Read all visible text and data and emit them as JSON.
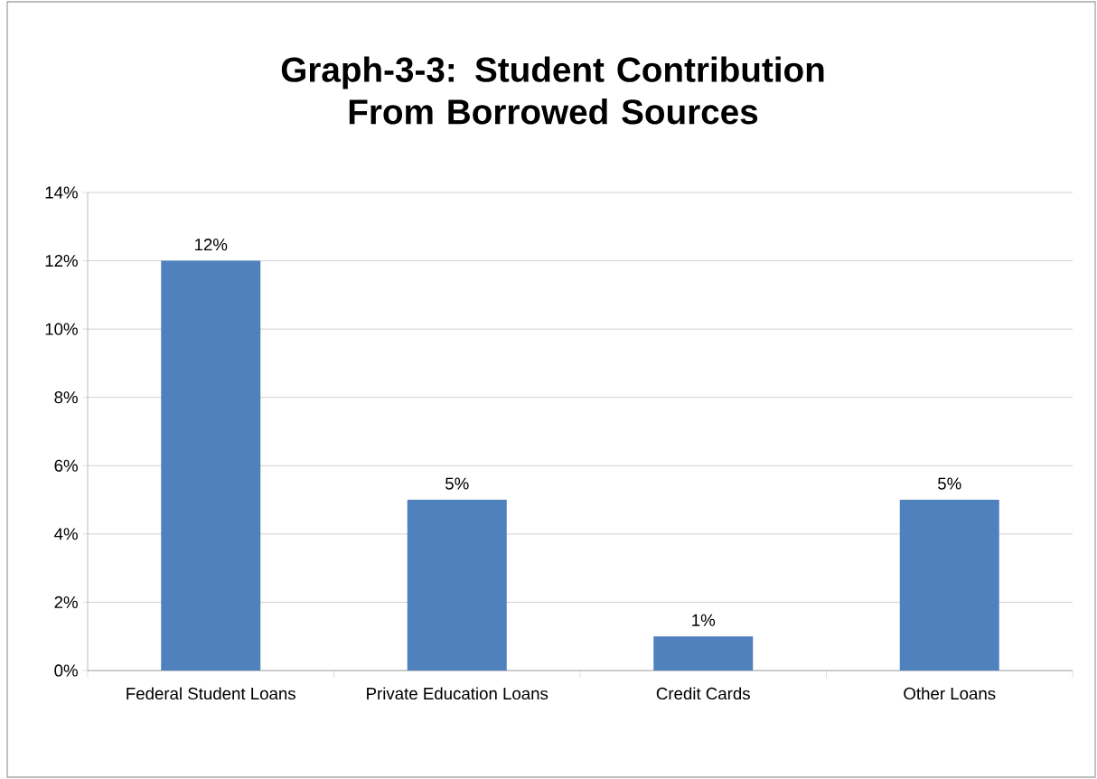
{
  "chart_data": {
    "type": "bar",
    "title": "Graph-3-3: Student Contribution From Borrowed Sources",
    "categories": [
      "Federal Student Loans",
      "Private Education Loans",
      "Credit Cards",
      "Other Loans"
    ],
    "values": [
      12,
      5,
      1,
      5
    ],
    "value_labels": [
      "12%",
      "5%",
      "1%",
      "5%"
    ],
    "color": "#4f81bd",
    "ylim": [
      0,
      14
    ],
    "yticks": [
      {
        "value": 0,
        "label": "0%"
      },
      {
        "value": 2,
        "label": "2%"
      },
      {
        "value": 4,
        "label": "4%"
      },
      {
        "value": 6,
        "label": "6%"
      },
      {
        "value": 8,
        "label": "8%"
      },
      {
        "value": 10,
        "label": "10%"
      },
      {
        "value": 12,
        "label": "12%"
      },
      {
        "value": 14,
        "label": "14%"
      }
    ],
    "grid": "y"
  }
}
